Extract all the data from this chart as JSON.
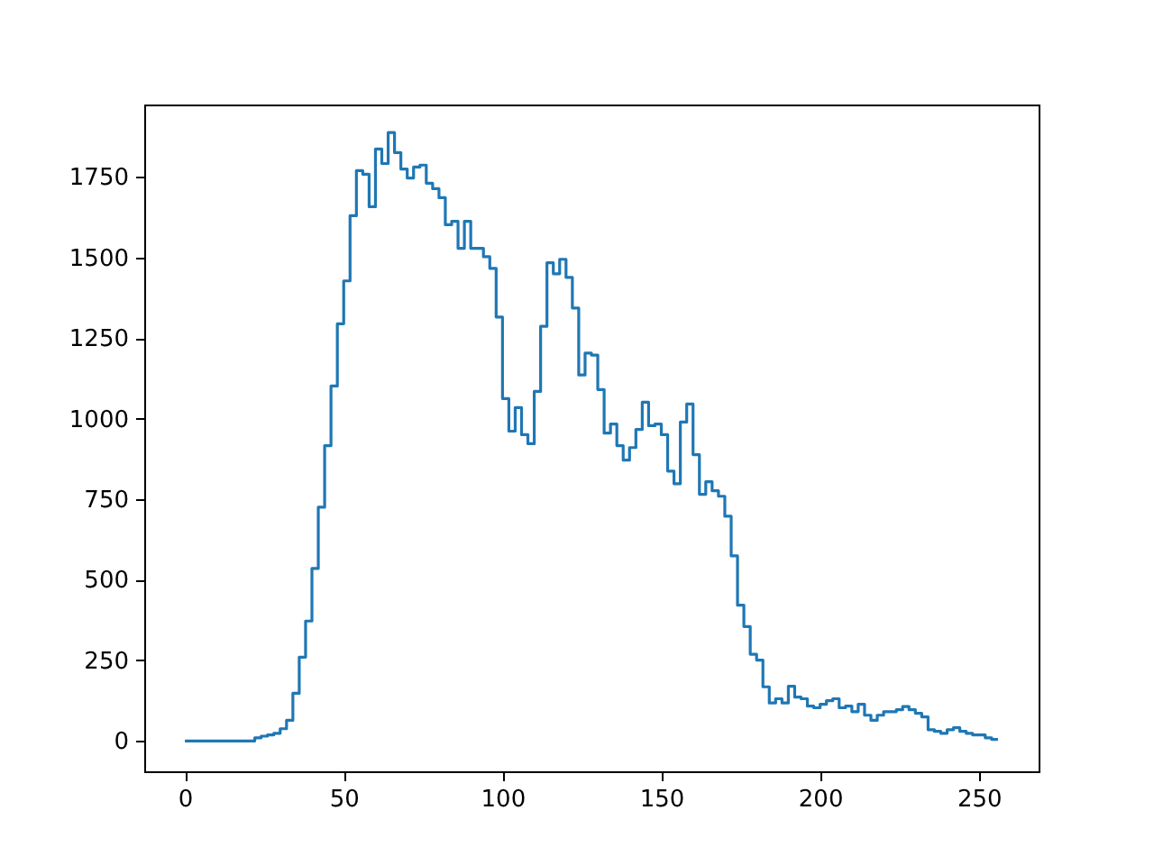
{
  "chart_data": {
    "type": "histogram",
    "bins": [
      0,
      2,
      4,
      6,
      8,
      10,
      12,
      14,
      16,
      18,
      20,
      22,
      24,
      26,
      28,
      30,
      32,
      34,
      36,
      38,
      40,
      42,
      44,
      46,
      48,
      50,
      52,
      54,
      56,
      58,
      60,
      62,
      64,
      66,
      68,
      70,
      72,
      74,
      76,
      78,
      80,
      82,
      84,
      86,
      88,
      90,
      92,
      94,
      96,
      98,
      100,
      102,
      104,
      106,
      108,
      110,
      112,
      114,
      116,
      118,
      120,
      122,
      124,
      126,
      128,
      130,
      132,
      134,
      136,
      138,
      140,
      142,
      144,
      146,
      148,
      150,
      152,
      154,
      156,
      158,
      160,
      162,
      164,
      166,
      168,
      170,
      172,
      174,
      176,
      178,
      180,
      182,
      184,
      186,
      188,
      190,
      192,
      194,
      196,
      198,
      200,
      202,
      204,
      206,
      208,
      210,
      212,
      214,
      216,
      218,
      220,
      222,
      224,
      226,
      228,
      230,
      232,
      234,
      236,
      238,
      240,
      242,
      244,
      246,
      248,
      250,
      252,
      254,
      256
    ],
    "values": [
      0,
      0,
      0,
      0,
      0,
      0,
      0,
      0,
      0,
      0,
      0,
      10,
      15,
      19,
      24,
      38,
      64,
      148,
      260,
      372,
      535,
      725,
      916,
      1101,
      1294,
      1427,
      1629,
      1769,
      1758,
      1657,
      1836,
      1791,
      1887,
      1825,
      1774,
      1746,
      1780,
      1786,
      1730,
      1713,
      1685,
      1601,
      1612,
      1528,
      1612,
      1528,
      1528,
      1502,
      1466,
      1315,
      1062,
      961,
      1034,
      950,
      922,
      1084,
      1286,
      1483,
      1449,
      1494,
      1438,
      1343,
      1135,
      1203,
      1197,
      1090,
      955,
      983,
      916,
      871,
      910,
      966,
      1051,
      978,
      983,
      950,
      837,
      798,
      989,
      1045,
      888,
      765,
      804,
      776,
      759,
      697,
      574,
      421,
      355,
      269,
      251,
      168,
      118,
      131,
      118,
      170,
      136,
      131,
      108,
      103,
      114,
      125,
      131,
      103,
      108,
      91,
      114,
      80,
      64,
      80,
      91,
      91,
      97,
      107,
      97,
      86,
      75,
      35,
      30,
      24,
      35,
      41,
      30,
      24,
      19,
      19,
      10,
      5
    ],
    "color": "#1f77b4",
    "xlim": [
      -12.8,
      268.8
    ],
    "xticks": [
      0,
      50,
      100,
      150,
      200,
      250
    ],
    "ylim": [
      -94,
      1974
    ],
    "yticks": [
      0,
      250,
      500,
      750,
      1000,
      1250,
      1500,
      1750
    ]
  }
}
